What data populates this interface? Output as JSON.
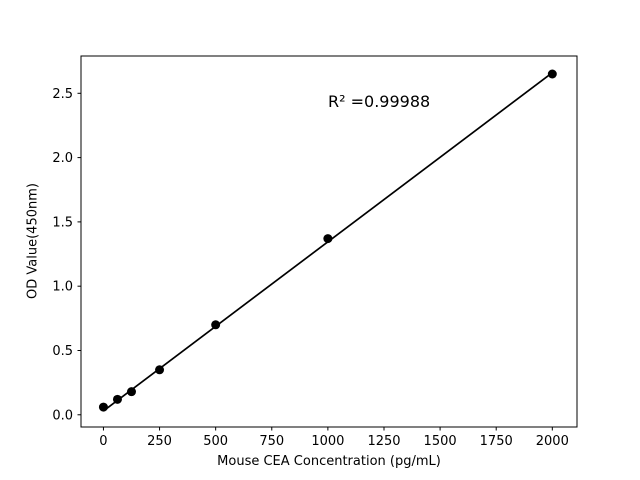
{
  "figure": {
    "background_color": "#ffffff",
    "foreground_color": "#000000"
  },
  "chart_data": {
    "type": "scatter",
    "title": "",
    "xlabel": "Mouse CEA Concentration (pg/mL)",
    "ylabel": "OD Value(450nm)",
    "x": [
      0,
      62.5,
      125,
      250,
      500,
      1000,
      2000
    ],
    "y": [
      0.06,
      0.12,
      0.18,
      0.35,
      0.7,
      1.37,
      2.65
    ],
    "fit_line": {
      "x": [
        0,
        2000
      ],
      "y": [
        0.03,
        2.66
      ]
    },
    "annotation": {
      "text": "R² =0.99988"
    },
    "xticks": {
      "values": [
        0,
        250,
        500,
        750,
        1000,
        1250,
        1500,
        1750,
        2000
      ],
      "labels": [
        "0",
        "250",
        "500",
        "750",
        "1000",
        "1250",
        "1500",
        "1750",
        "2000"
      ]
    },
    "yticks": {
      "values": [
        0.0,
        0.5,
        1.0,
        1.5,
        2.0,
        2.5
      ],
      "labels": [
        "0.0",
        "0.5",
        "1.0",
        "1.5",
        "2.0",
        "2.5"
      ]
    },
    "xlim": [
      -100,
      2110
    ],
    "ylim": [
      -0.095,
      2.79
    ],
    "grid": false,
    "legend": "none",
    "marker_color": "#000000",
    "line_color": "#000000"
  }
}
